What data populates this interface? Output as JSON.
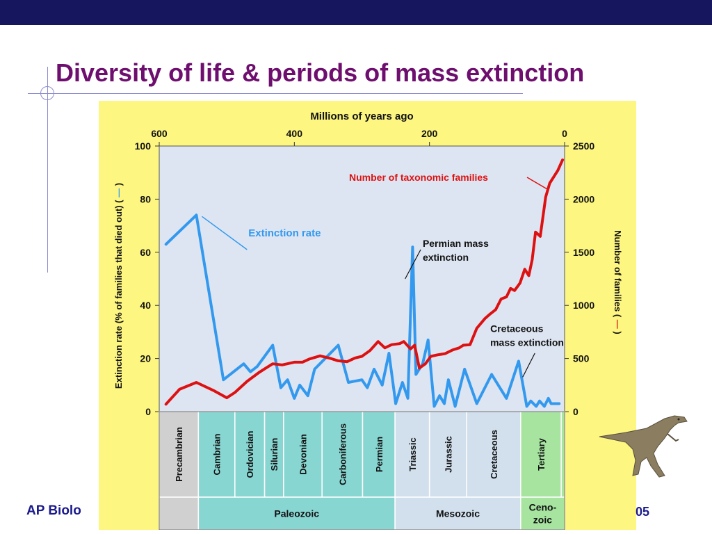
{
  "slide": {
    "title": "Diversity of life & periods of mass extinction",
    "footer_left": "AP Biolo",
    "footer_right": "05",
    "colors": {
      "top_bar": "#16165e",
      "title": "#6e0e6e",
      "chart_panel": "#fdf680",
      "plot_area": "#dde5f2"
    }
  },
  "chart_data": {
    "type": "line",
    "title": "Millions of years ago",
    "x_axis": {
      "label": "Millions of years ago",
      "ticks": [
        600,
        400,
        200,
        0
      ],
      "range": [
        600,
        0
      ]
    },
    "y_left": {
      "label": "Extinction rate (% of families that died out) (",
      "ticks": [
        0,
        20,
        40,
        60,
        80,
        100
      ],
      "range": [
        0,
        100
      ]
    },
    "y_right": {
      "label": "Number of families (",
      "ticks": [
        0,
        500,
        1000,
        1500,
        2000,
        2500
      ],
      "range": [
        0,
        2500
      ]
    },
    "grid": false,
    "series": [
      {
        "name": "Extinction rate",
        "axis": "left",
        "color": "#3399ee",
        "x": [
          590,
          545,
          505,
          475,
          465,
          455,
          432,
          420,
          410,
          400,
          392,
          380,
          370,
          335,
          320,
          300,
          292,
          282,
          270,
          260,
          250,
          240,
          232,
          225,
          220,
          210,
          202,
          193,
          185,
          178,
          172,
          162,
          148,
          130,
          108,
          86,
          68,
          56,
          50,
          42,
          37,
          30,
          24,
          20,
          13,
          8
        ],
        "y": [
          63,
          74,
          12,
          18,
          15,
          17,
          25,
          9,
          12,
          5,
          10,
          6,
          16,
          25,
          11,
          12,
          9,
          16,
          10,
          22,
          3,
          11,
          5,
          62,
          14,
          18,
          27,
          2,
          6,
          3,
          12,
          2,
          16,
          3,
          14,
          5,
          19,
          2,
          4,
          2,
          4,
          2,
          5,
          3,
          3,
          3
        ]
      },
      {
        "name": "Number of taxonomic families",
        "axis": "right",
        "color": "#dd1111",
        "x": [
          590,
          570,
          545,
          520,
          500,
          488,
          470,
          452,
          432,
          418,
          400,
          388,
          378,
          362,
          346,
          336,
          322,
          310,
          300,
          288,
          276,
          266,
          256,
          244,
          238,
          228,
          222,
          215,
          206,
          198,
          188,
          177,
          166,
          156,
          150,
          140,
          130,
          118,
          110,
          102,
          94,
          86,
          80,
          74,
          66,
          59,
          53,
          48,
          43,
          36,
          28,
          22,
          10,
          3
        ],
        "y": [
          70,
          210,
          275,
          200,
          130,
          180,
          285,
          370,
          450,
          440,
          465,
          465,
          495,
          525,
          500,
          480,
          470,
          505,
          520,
          575,
          660,
          600,
          630,
          640,
          660,
          590,
          625,
          410,
          450,
          520,
          535,
          545,
          580,
          600,
          625,
          630,
          785,
          875,
          920,
          960,
          1060,
          1080,
          1160,
          1140,
          1210,
          1340,
          1280,
          1430,
          1690,
          1650,
          2020,
          2150,
          2270,
          2370
        ]
      }
    ],
    "annotations": [
      {
        "text_lines": [
          "Extinction rate"
        ],
        "color": "#3399ee"
      },
      {
        "text_lines": [
          "Number of taxonomic families"
        ],
        "color": "#dd1111"
      },
      {
        "text_lines": [
          "Permian mass",
          "extinction"
        ],
        "color": "#111111"
      },
      {
        "text_lines": [
          "Cretaceous",
          "mass extinction"
        ],
        "color": "#111111"
      }
    ],
    "periods": [
      {
        "name": "Precambrian",
        "start": 600,
        "end": 542,
        "era": "Precambrian",
        "color": "#d0d0d0"
      },
      {
        "name": "Cambrian",
        "start": 542,
        "end": 488,
        "era": "Paleozoic",
        "color": "#88d6d2"
      },
      {
        "name": "Ordovician",
        "start": 488,
        "end": 444,
        "era": "Paleozoic",
        "color": "#88d6d2"
      },
      {
        "name": "Silurian",
        "start": 444,
        "end": 416,
        "era": "Paleozoic",
        "color": "#88d6d2"
      },
      {
        "name": "Devonian",
        "start": 416,
        "end": 359,
        "era": "Paleozoic",
        "color": "#88d6d2"
      },
      {
        "name": "Carboniferous",
        "start": 359,
        "end": 299,
        "era": "Paleozoic",
        "color": "#88d6d2"
      },
      {
        "name": "Permian",
        "start": 299,
        "end": 251,
        "era": "Paleozoic",
        "color": "#88d6d2"
      },
      {
        "name": "Triassic",
        "start": 251,
        "end": 200,
        "era": "Mesozoic",
        "color": "#d2e0ee"
      },
      {
        "name": "Jurassic",
        "start": 200,
        "end": 145,
        "era": "Mesozoic",
        "color": "#d2e0ee"
      },
      {
        "name": "Cretaceous",
        "start": 145,
        "end": 65,
        "era": "Mesozoic",
        "color": "#d2e0ee"
      },
      {
        "name": "Tertiary",
        "start": 65,
        "end": 5,
        "era": "Cenozoic",
        "color": "#a6e4a0"
      },
      {
        "name": "",
        "start": 5,
        "end": 0,
        "era": "Cenozoic",
        "color": "#a6e4a0"
      }
    ],
    "eras": [
      {
        "name": "",
        "start": 600,
        "end": 542,
        "color": "#d0d0d0"
      },
      {
        "name": "Paleozoic",
        "start": 542,
        "end": 251,
        "color": "#88d6d2"
      },
      {
        "name": "Mesozoic",
        "start": 251,
        "end": 65,
        "color": "#d2e0ee"
      },
      {
        "name": "Ceno-\nzoic",
        "start": 65,
        "end": 0,
        "color": "#a6e4a0"
      }
    ]
  }
}
